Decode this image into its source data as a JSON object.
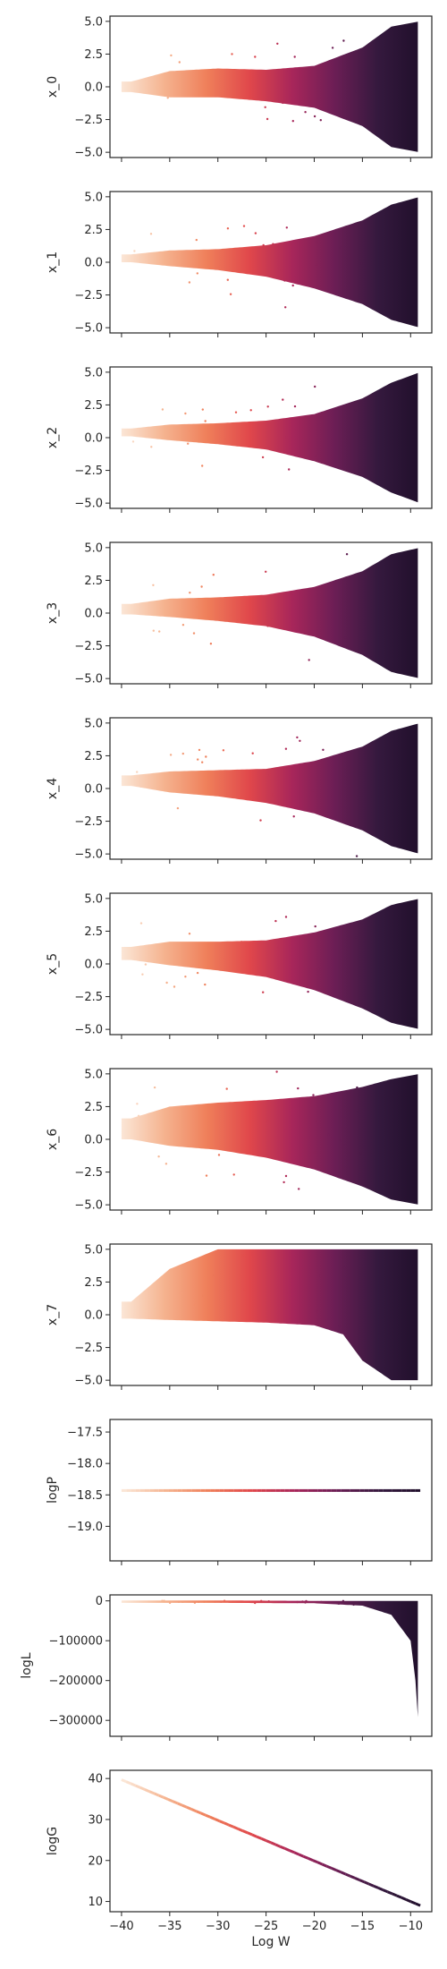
{
  "chart_data": [
    {
      "id": "x0",
      "type": "scatter",
      "ylabel": "x_0",
      "xlabel": "",
      "ylim": [
        -5.4,
        5.4
      ],
      "yticks": [
        5.0,
        2.5,
        0.0,
        -2.5,
        -5.0
      ],
      "yticklabels": [
        "5.0",
        "2.5",
        "0.0",
        "−2.5",
        "−5.0"
      ],
      "x_ticklabels_shown": false,
      "series": [
        {
          "shape": "wedge",
          "points": [
            {
              "x": -39,
              "y": 0.0,
              "spread": 0.4
            },
            {
              "x": -35,
              "y": 0.2,
              "spread": 1.0
            },
            {
              "x": -30,
              "y": 0.3,
              "spread": 1.1
            },
            {
              "x": -25,
              "y": 0.1,
              "spread": 1.2
            },
            {
              "x": -20,
              "y": 0.0,
              "spread": 1.6
            },
            {
              "x": -15,
              "y": 0.0,
              "spread": 3.0
            },
            {
              "x": -12,
              "y": 0.0,
              "spread": 4.6
            },
            {
              "x": -9,
              "y": 0.0,
              "spread": 5.0
            }
          ]
        }
      ]
    },
    {
      "id": "x1",
      "type": "scatter",
      "ylabel": "x_1",
      "xlabel": "",
      "ylim": [
        -5.4,
        5.4
      ],
      "yticks": [
        5.0,
        2.5,
        0.0,
        -2.5,
        -5.0
      ],
      "yticklabels": [
        "5.0",
        "2.5",
        "0.0",
        "−2.5",
        "−5.0"
      ],
      "x_ticklabels_shown": false,
      "series": [
        {
          "shape": "wedge",
          "points": [
            {
              "x": -39,
              "y": 0.3,
              "spread": 0.3
            },
            {
              "x": -35,
              "y": 0.3,
              "spread": 0.6
            },
            {
              "x": -30,
              "y": 0.2,
              "spread": 0.8
            },
            {
              "x": -25,
              "y": 0.1,
              "spread": 1.2
            },
            {
              "x": -20,
              "y": 0.0,
              "spread": 2.0
            },
            {
              "x": -15,
              "y": 0.0,
              "spread": 3.2
            },
            {
              "x": -12,
              "y": 0.0,
              "spread": 4.4
            },
            {
              "x": -9,
              "y": 0.0,
              "spread": 5.0
            }
          ]
        }
      ]
    },
    {
      "id": "x2",
      "type": "scatter",
      "ylabel": "x_2",
      "xlabel": "",
      "ylim": [
        -5.4,
        5.4
      ],
      "yticks": [
        5.0,
        2.5,
        0.0,
        -2.5,
        -5.0
      ],
      "yticklabels": [
        "5.0",
        "2.5",
        "0.0",
        "−2.5",
        "−5.0"
      ],
      "x_ticklabels_shown": false,
      "series": [
        {
          "shape": "wedge",
          "points": [
            {
              "x": -39,
              "y": 0.4,
              "spread": 0.3
            },
            {
              "x": -35,
              "y": 0.4,
              "spread": 0.6
            },
            {
              "x": -30,
              "y": 0.3,
              "spread": 0.8
            },
            {
              "x": -25,
              "y": 0.2,
              "spread": 1.1
            },
            {
              "x": -20,
              "y": 0.0,
              "spread": 1.8
            },
            {
              "x": -15,
              "y": 0.0,
              "spread": 3.0
            },
            {
              "x": -12,
              "y": 0.0,
              "spread": 4.2
            },
            {
              "x": -9,
              "y": 0.0,
              "spread": 5.0
            }
          ]
        }
      ]
    },
    {
      "id": "x3",
      "type": "scatter",
      "ylabel": "x_3",
      "xlabel": "",
      "ylim": [
        -5.4,
        5.4
      ],
      "yticks": [
        5.0,
        2.5,
        0.0,
        -2.5,
        -5.0
      ],
      "yticklabels": [
        "5.0",
        "2.5",
        "0.0",
        "−2.5",
        "−5.0"
      ],
      "x_ticklabels_shown": false,
      "series": [
        {
          "shape": "wedge",
          "points": [
            {
              "x": -39,
              "y": 0.3,
              "spread": 0.4
            },
            {
              "x": -35,
              "y": 0.4,
              "spread": 0.7
            },
            {
              "x": -30,
              "y": 0.3,
              "spread": 0.9
            },
            {
              "x": -25,
              "y": 0.2,
              "spread": 1.2
            },
            {
              "x": -20,
              "y": 0.1,
              "spread": 1.9
            },
            {
              "x": -15,
              "y": 0.0,
              "spread": 3.2
            },
            {
              "x": -12,
              "y": 0.0,
              "spread": 4.5
            },
            {
              "x": -9,
              "y": 0.0,
              "spread": 5.0
            }
          ]
        }
      ]
    },
    {
      "id": "x4",
      "type": "scatter",
      "ylabel": "x_4",
      "xlabel": "",
      "ylim": [
        -5.4,
        5.4
      ],
      "yticks": [
        5.0,
        2.5,
        0.0,
        -2.5,
        -5.0
      ],
      "yticklabels": [
        "5.0",
        "2.5",
        "0.0",
        "−2.5",
        "−5.0"
      ],
      "x_ticklabels_shown": false,
      "series": [
        {
          "shape": "wedge",
          "points": [
            {
              "x": -39,
              "y": 0.6,
              "spread": 0.4
            },
            {
              "x": -35,
              "y": 0.5,
              "spread": 0.8
            },
            {
              "x": -30,
              "y": 0.4,
              "spread": 1.0
            },
            {
              "x": -25,
              "y": 0.2,
              "spread": 1.3
            },
            {
              "x": -20,
              "y": 0.1,
              "spread": 2.0
            },
            {
              "x": -15,
              "y": 0.0,
              "spread": 3.2
            },
            {
              "x": -12,
              "y": 0.0,
              "spread": 4.4
            },
            {
              "x": -9,
              "y": 0.0,
              "spread": 5.0
            }
          ]
        }
      ]
    },
    {
      "id": "x5",
      "type": "scatter",
      "ylabel": "x_5",
      "xlabel": "",
      "ylim": [
        -5.4,
        5.4
      ],
      "yticks": [
        5.0,
        2.5,
        0.0,
        -2.5,
        -5.0
      ],
      "yticklabels": [
        "5.0",
        "2.5",
        "0.0",
        "−2.5",
        "−5.0"
      ],
      "x_ticklabels_shown": false,
      "series": [
        {
          "shape": "wedge",
          "points": [
            {
              "x": -39,
              "y": 0.8,
              "spread": 0.5
            },
            {
              "x": -35,
              "y": 0.8,
              "spread": 0.9
            },
            {
              "x": -30,
              "y": 0.6,
              "spread": 1.1
            },
            {
              "x": -25,
              "y": 0.4,
              "spread": 1.4
            },
            {
              "x": -20,
              "y": 0.2,
              "spread": 2.2
            },
            {
              "x": -15,
              "y": 0.0,
              "spread": 3.4
            },
            {
              "x": -12,
              "y": 0.0,
              "spread": 4.5
            },
            {
              "x": -9,
              "y": 0.0,
              "spread": 5.0
            }
          ]
        }
      ]
    },
    {
      "id": "x6",
      "type": "scatter",
      "ylabel": "x_6",
      "xlabel": "",
      "ylim": [
        -5.4,
        5.4
      ],
      "yticks": [
        5.0,
        2.5,
        0.0,
        -2.5,
        -5.0
      ],
      "yticklabels": [
        "5.0",
        "2.5",
        "0.0",
        "−2.5",
        "−5.0"
      ],
      "x_ticklabels_shown": false,
      "series": [
        {
          "shape": "wedge",
          "points": [
            {
              "x": -39,
              "y": 0.8,
              "spread": 0.8
            },
            {
              "x": -35,
              "y": 1.0,
              "spread": 1.5
            },
            {
              "x": -30,
              "y": 1.0,
              "spread": 1.8
            },
            {
              "x": -25,
              "y": 0.8,
              "spread": 2.2
            },
            {
              "x": -20,
              "y": 0.5,
              "spread": 2.8
            },
            {
              "x": -15,
              "y": 0.2,
              "spread": 3.8
            },
            {
              "x": -12,
              "y": 0.0,
              "spread": 4.6
            },
            {
              "x": -9,
              "y": 0.0,
              "spread": 5.0
            }
          ]
        }
      ]
    },
    {
      "id": "x7",
      "type": "scatter",
      "ylabel": "x_7",
      "xlabel": "",
      "ylim": [
        -5.4,
        5.4
      ],
      "yticks": [
        5.0,
        2.5,
        0.0,
        -2.5,
        -5.0
      ],
      "yticklabels": [
        "5.0",
        "2.5",
        "0.0",
        "−2.5",
        "−5.0"
      ],
      "x_ticklabels_shown": false,
      "series": [
        {
          "shape": "band",
          "points": [
            {
              "x": -39,
              "lo": -0.3,
              "hi": 1.0
            },
            {
              "x": -35,
              "lo": -0.4,
              "hi": 3.5
            },
            {
              "x": -30,
              "lo": -0.5,
              "hi": 5.0
            },
            {
              "x": -25,
              "lo": -0.6,
              "hi": 5.0
            },
            {
              "x": -20,
              "lo": -0.8,
              "hi": 5.0
            },
            {
              "x": -17,
              "lo": -1.5,
              "hi": 5.0
            },
            {
              "x": -15,
              "lo": -3.5,
              "hi": 5.0
            },
            {
              "x": -12,
              "lo": -5.0,
              "hi": 5.0
            },
            {
              "x": -9,
              "lo": -5.0,
              "hi": 5.0
            }
          ]
        }
      ]
    },
    {
      "id": "logP",
      "type": "scatter",
      "ylabel": "logP",
      "xlabel": "",
      "ylim": [
        -19.55,
        -17.3
      ],
      "yticks": [
        -17.5,
        -18.0,
        -18.5,
        -19.0
      ],
      "yticklabels": [
        "−17.5",
        "−18.0",
        "−18.5",
        "−19.0"
      ],
      "x_ticklabels_shown": false,
      "series": [
        {
          "shape": "line",
          "points": [
            {
              "x": -40,
              "y": -18.43
            },
            {
              "x": -9,
              "y": -18.43
            }
          ]
        }
      ]
    },
    {
      "id": "logL",
      "type": "scatter",
      "ylabel": "logL",
      "xlabel": "",
      "ylim": [
        -340000,
        15000
      ],
      "yticks": [
        0,
        -100000,
        -200000,
        -300000
      ],
      "yticklabels": [
        "0",
        "−100000",
        "−200000",
        "−300000"
      ],
      "x_ticklabels_shown": false,
      "series": [
        {
          "shape": "band",
          "points": [
            {
              "x": -39,
              "lo": -5000,
              "hi": 1000
            },
            {
              "x": -30,
              "lo": -5000,
              "hi": 1000
            },
            {
              "x": -20,
              "lo": -6000,
              "hi": 0
            },
            {
              "x": -15,
              "lo": -12000,
              "hi": 0
            },
            {
              "x": -12,
              "lo": -35000,
              "hi": 0
            },
            {
              "x": -10,
              "lo": -100000,
              "hi": 0
            },
            {
              "x": -9.5,
              "lo": -200000,
              "hi": 0
            },
            {
              "x": -9.2,
              "lo": -310000,
              "hi": 0
            }
          ]
        }
      ]
    },
    {
      "id": "logG",
      "type": "scatter",
      "ylabel": "logG",
      "xlabel": "Log W",
      "xlim": [
        -41.2,
        -7.8
      ],
      "xticks": [
        -40,
        -35,
        -30,
        -25,
        -20,
        -15,
        -10
      ],
      "xticklabels": [
        "−40",
        "−35",
        "−30",
        "−25",
        "−20",
        "−15",
        "−10"
      ],
      "ylim": [
        7.5,
        42
      ],
      "yticks": [
        40,
        30,
        20,
        10
      ],
      "yticklabels": [
        "40",
        "30",
        "20",
        "10"
      ],
      "x_ticklabels_shown": true,
      "series": [
        {
          "shape": "line",
          "points": [
            {
              "x": -40,
              "y": 39.7
            },
            {
              "x": -9,
              "y": 9.0
            }
          ]
        }
      ]
    }
  ],
  "xlim": [
    -41.2,
    -7.8
  ],
  "xticks": [
    -40,
    -35,
    -30,
    -25,
    -20,
    -15,
    -10
  ],
  "colormap": [
    "#fbe6d6",
    "#f5b38f",
    "#ef7f5a",
    "#e0474b",
    "#a8265a",
    "#6b1e55",
    "#35193e",
    "#200f2b"
  ]
}
